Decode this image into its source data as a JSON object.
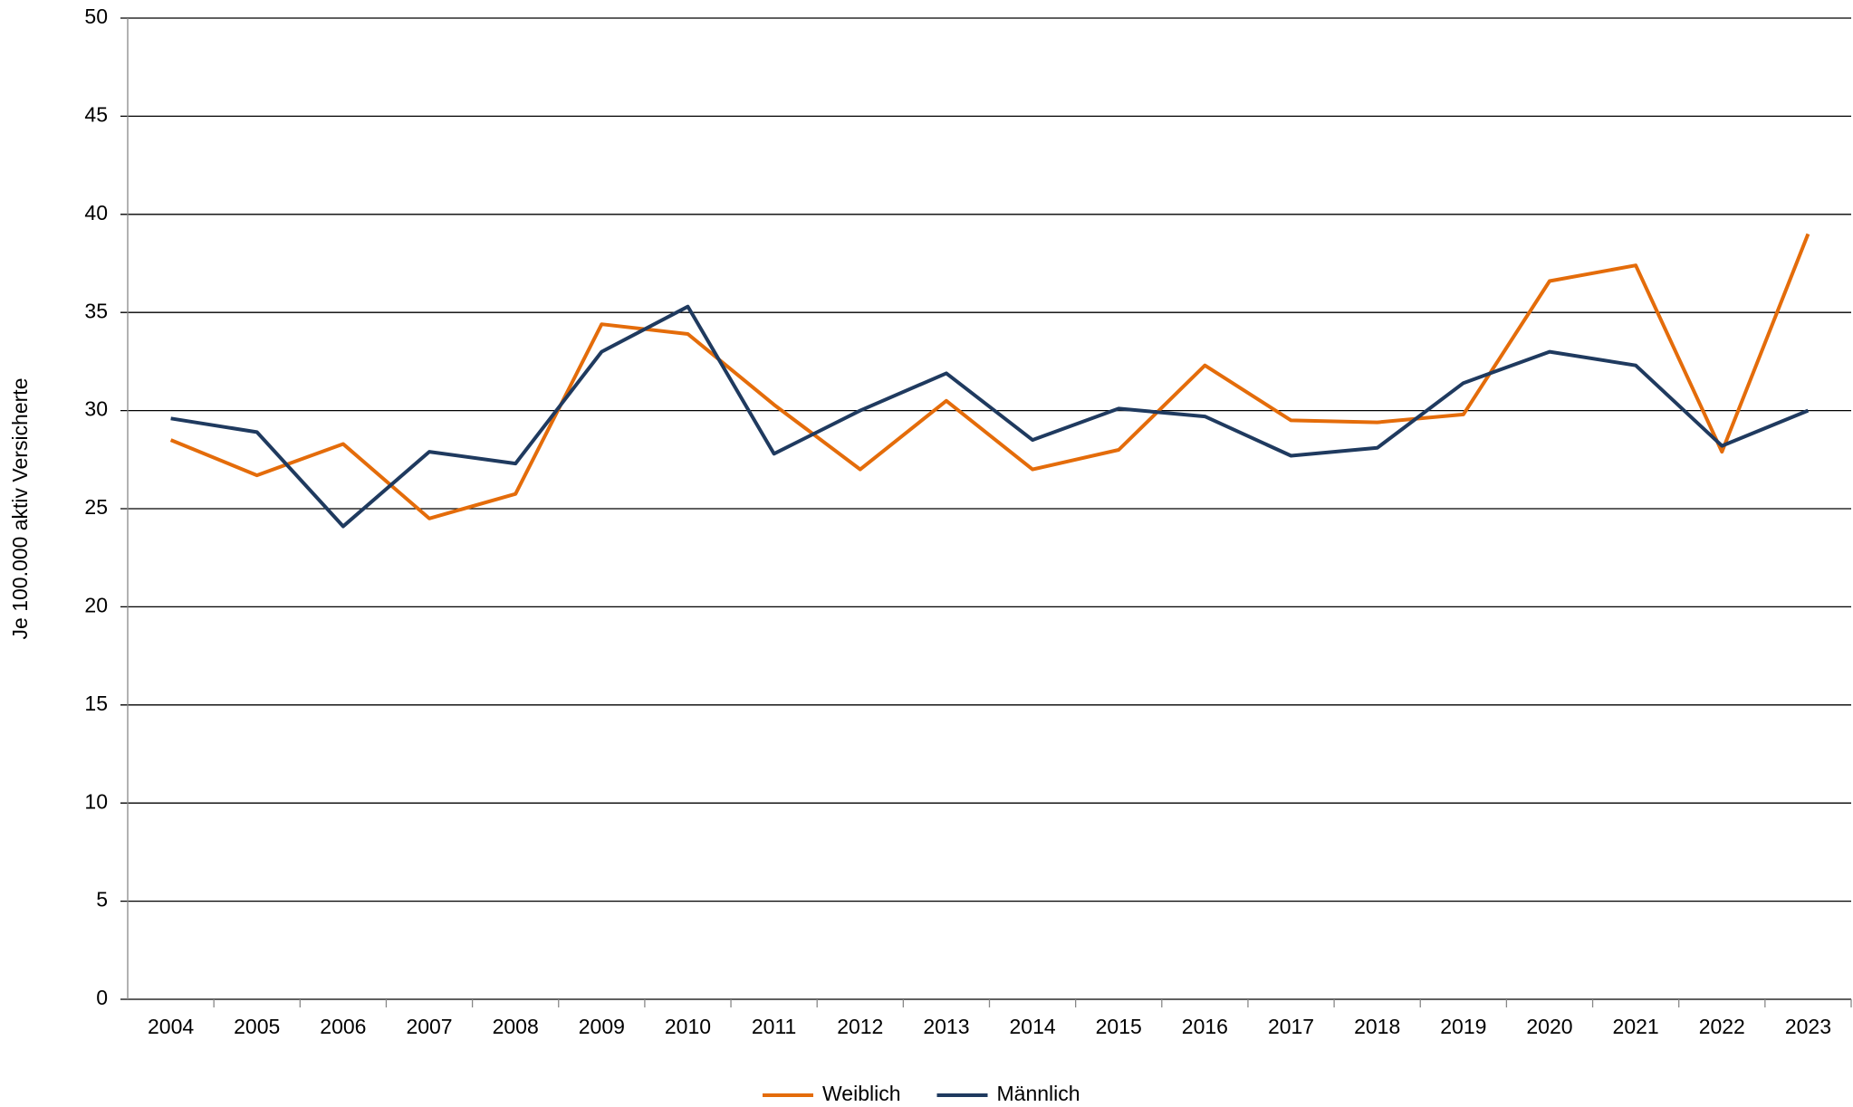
{
  "chart_data": {
    "type": "line",
    "y_label": "Je 100.000 aktiv Versicherte",
    "categories": [
      "2004",
      "2005",
      "2006",
      "2007",
      "2008",
      "2009",
      "2010",
      "2011",
      "2012",
      "2013",
      "2014",
      "2015",
      "2016",
      "2017",
      "2018",
      "2019",
      "2020",
      "2021",
      "2022",
      "2023"
    ],
    "series": [
      {
        "name": "Weiblich",
        "color": "#e46c0a",
        "values": [
          28.5,
          26.7,
          28.3,
          24.5,
          25.75,
          34.4,
          33.9,
          30.3,
          27.0,
          30.5,
          27.0,
          28.0,
          32.3,
          29.5,
          29.4,
          29.8,
          36.6,
          37.4,
          27.9,
          39.0
        ]
      },
      {
        "name": "Männlich",
        "color": "#1f3a5f",
        "values": [
          29.6,
          28.9,
          24.1,
          27.9,
          27.3,
          33.0,
          35.3,
          27.8,
          30.0,
          31.9,
          28.5,
          30.1,
          29.7,
          27.7,
          28.1,
          31.4,
          33.0,
          32.3,
          28.2,
          30.0
        ]
      }
    ],
    "ylim": [
      0,
      50
    ],
    "yticks": [
      0,
      5,
      10,
      15,
      20,
      25,
      30,
      35,
      40,
      45,
      50
    ],
    "grid": true,
    "legend": "bottom"
  }
}
